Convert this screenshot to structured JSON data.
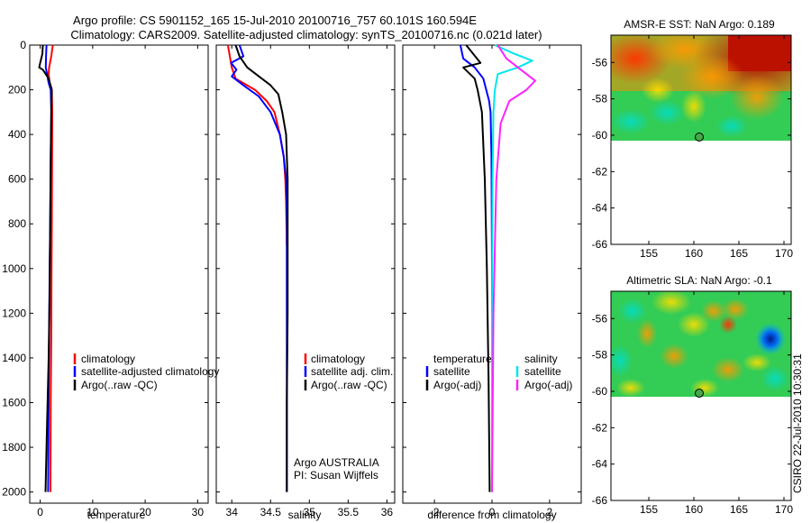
{
  "header": {
    "line1": "Argo profile: CS 5901152_165 15-Jul-2010 20100716_757 60.101S 160.594E",
    "line2": "Climatology: CARS2009. Satellite-adjusted climatology: synTS_20100716.nc (0.021d later)"
  },
  "side_text": "CSIRO 22-Jul-2010 10:30:31",
  "colors": {
    "red": "#ff0000",
    "blue": "#0000ff",
    "black": "#000000",
    "cyan": "#00e5ee",
    "magenta": "#ff22ff"
  },
  "chart_data": [
    {
      "type": "line",
      "id": "temperature",
      "xlabel": "temperature",
      "ylabel": "",
      "xlim": [
        -2,
        32
      ],
      "ylim": [
        2050,
        0
      ],
      "x_ticks": [
        0,
        10,
        20,
        30
      ],
      "y_ticks": [
        0,
        200,
        400,
        600,
        800,
        1000,
        1200,
        1400,
        1600,
        1800,
        2000
      ],
      "legend": {
        "position": "lower-right",
        "entries": [
          "climatology",
          "satellite-adjusted climatology",
          "Argo(..raw -QC)"
        ]
      },
      "series": [
        {
          "name": "climatology",
          "color": "red",
          "x": [
            2.4,
            2.1,
            1.7,
            1.6,
            1.8,
            2.2,
            2.3,
            2.25,
            2.2,
            2.15,
            2.1,
            2.0,
            1.95
          ],
          "y": [
            0,
            50,
            100,
            130,
            170,
            200,
            300,
            500,
            800,
            1000,
            1300,
            1600,
            2000
          ]
        },
        {
          "name": "satellite-adjusted climatology",
          "color": "blue",
          "x": [
            1.2,
            1.1,
            1.05,
            1.3,
            1.6,
            2.0,
            2.1,
            2.0,
            1.9,
            1.8,
            1.7,
            1.6,
            1.5
          ],
          "y": [
            0,
            50,
            100,
            130,
            170,
            200,
            300,
            500,
            800,
            1000,
            1300,
            1600,
            2000
          ]
        },
        {
          "name": "Argo(..raw -QC)",
          "color": "black",
          "x": [
            0.5,
            0.4,
            0.0,
            -0.2,
            0.5,
            1.6,
            2.2,
            2.1,
            2.0,
            1.9,
            1.8,
            1.6,
            1.3,
            1.0
          ],
          "y": [
            0,
            40,
            80,
            100,
            110,
            150,
            200,
            300,
            500,
            800,
            1100,
            1400,
            1700,
            2000
          ]
        }
      ]
    },
    {
      "type": "line",
      "id": "salinity",
      "xlabel": "salinity",
      "xlim": [
        33.8,
        36.1
      ],
      "ylim": [
        2050,
        0
      ],
      "x_ticks": [
        34,
        34.5,
        35,
        35.5,
        36
      ],
      "legend": {
        "position": "lower-right",
        "entries": [
          "climatology",
          "satellite adj. clim.",
          "Argo(..raw -QC)"
        ]
      },
      "annotation": [
        "Argo AUSTRALIA",
        "PI: Susan Wijffels"
      ],
      "series": [
        {
          "name": "climatology",
          "color": "red",
          "x": [
            33.95,
            34.0,
            34.05,
            34.3,
            34.45,
            34.55,
            34.62,
            34.67,
            34.69,
            34.7,
            34.71
          ],
          "y": [
            0,
            100,
            150,
            200,
            250,
            300,
            400,
            500,
            600,
            700,
            900
          ]
        },
        {
          "name": "satellite adj. clim.",
          "color": "blue",
          "x": [
            34.1,
            34.15,
            33.99,
            34.06,
            34.0,
            34.15,
            34.35,
            34.5,
            34.62,
            34.67,
            34.7,
            34.71,
            34.71,
            34.71
          ],
          "y": [
            0,
            50,
            80,
            110,
            140,
            180,
            230,
            300,
            400,
            500,
            600,
            800,
            1200,
            2000
          ]
        },
        {
          "name": "Argo(..raw -QC)",
          "color": "black",
          "x": [
            34.05,
            34.1,
            34.2,
            34.35,
            34.5,
            34.6,
            34.65,
            34.7,
            34.72,
            34.72,
            34.72,
            34.71,
            34.71
          ],
          "y": [
            0,
            50,
            100,
            140,
            180,
            220,
            300,
            400,
            600,
            800,
            1200,
            1600,
            2000
          ]
        }
      ]
    },
    {
      "type": "line",
      "id": "difference",
      "xlabel": "difference from climatology",
      "xlim": [
        -3.1,
        3.1
      ],
      "ylim": [
        2050,
        0
      ],
      "x_ticks": [
        -2,
        0,
        2
      ],
      "legend": {
        "position": "lower",
        "temperature_title": "temperature",
        "salinity_title": "salinity",
        "entries": [
          "satellite",
          "Argo(-adj)",
          "satellite",
          "Argo(-adj)"
        ]
      },
      "series": [
        {
          "name": "temperature satellite",
          "color": "blue",
          "x": [
            -1.1,
            -1.0,
            -0.6,
            -0.3,
            -0.2,
            -0.1,
            -0.05,
            -0.02,
            0.0,
            0.0
          ],
          "y": [
            0,
            60,
            100,
            150,
            200,
            250,
            300,
            500,
            1000,
            2000
          ]
        },
        {
          "name": "temperature Argo(-adj)",
          "color": "black",
          "x": [
            -0.9,
            -0.4,
            -1.0,
            -0.6,
            -0.5,
            -0.35,
            -0.25,
            -0.18,
            -0.12,
            -0.08
          ],
          "y": [
            0,
            80,
            100,
            150,
            200,
            300,
            600,
            1000,
            1500,
            2000
          ]
        },
        {
          "name": "salinity satellite",
          "color": "cyan",
          "x": [
            0.1,
            0.8,
            1.4,
            0.9,
            0.2,
            0.1,
            0.05,
            0.02,
            0.0,
            0.0
          ],
          "y": [
            0,
            40,
            70,
            100,
            130,
            200,
            300,
            600,
            1200,
            2000
          ]
        },
        {
          "name": "salinity Argo(-adj)",
          "color": "magenta",
          "x": [
            0.2,
            0.5,
            1.1,
            1.5,
            1.2,
            0.6,
            0.3,
            0.15,
            0.05,
            0.0
          ],
          "y": [
            0,
            60,
            120,
            160,
            200,
            250,
            350,
            600,
            1200,
            2000
          ]
        }
      ]
    },
    {
      "type": "heatmap",
      "id": "sst",
      "title": "AMSR-E SST: NaN Argo: 0.189",
      "xlim": [
        150.8,
        170.8
      ],
      "ylim": [
        -66,
        -54.5
      ],
      "x_ticks": [
        155,
        160,
        165,
        170
      ],
      "y_ticks": [
        -56,
        -58,
        -60,
        -62,
        -64,
        -66
      ],
      "data_extent_lat": [
        -54.5,
        -60.0
      ],
      "marker": {
        "lon": 160.6,
        "lat": -60.1
      }
    },
    {
      "type": "heatmap",
      "id": "sla",
      "title": "Altimetric SLA: NaN Argo: -0.1",
      "xlim": [
        150.8,
        170.8
      ],
      "ylim": [
        -66,
        -54.5
      ],
      "x_ticks": [
        155,
        160,
        165,
        170
      ],
      "y_ticks": [
        -56,
        -58,
        -60,
        -62,
        -64,
        -66
      ],
      "data_extent_lat": [
        -54.5,
        -60.0
      ],
      "marker": {
        "lon": 160.6,
        "lat": -60.1
      }
    }
  ]
}
